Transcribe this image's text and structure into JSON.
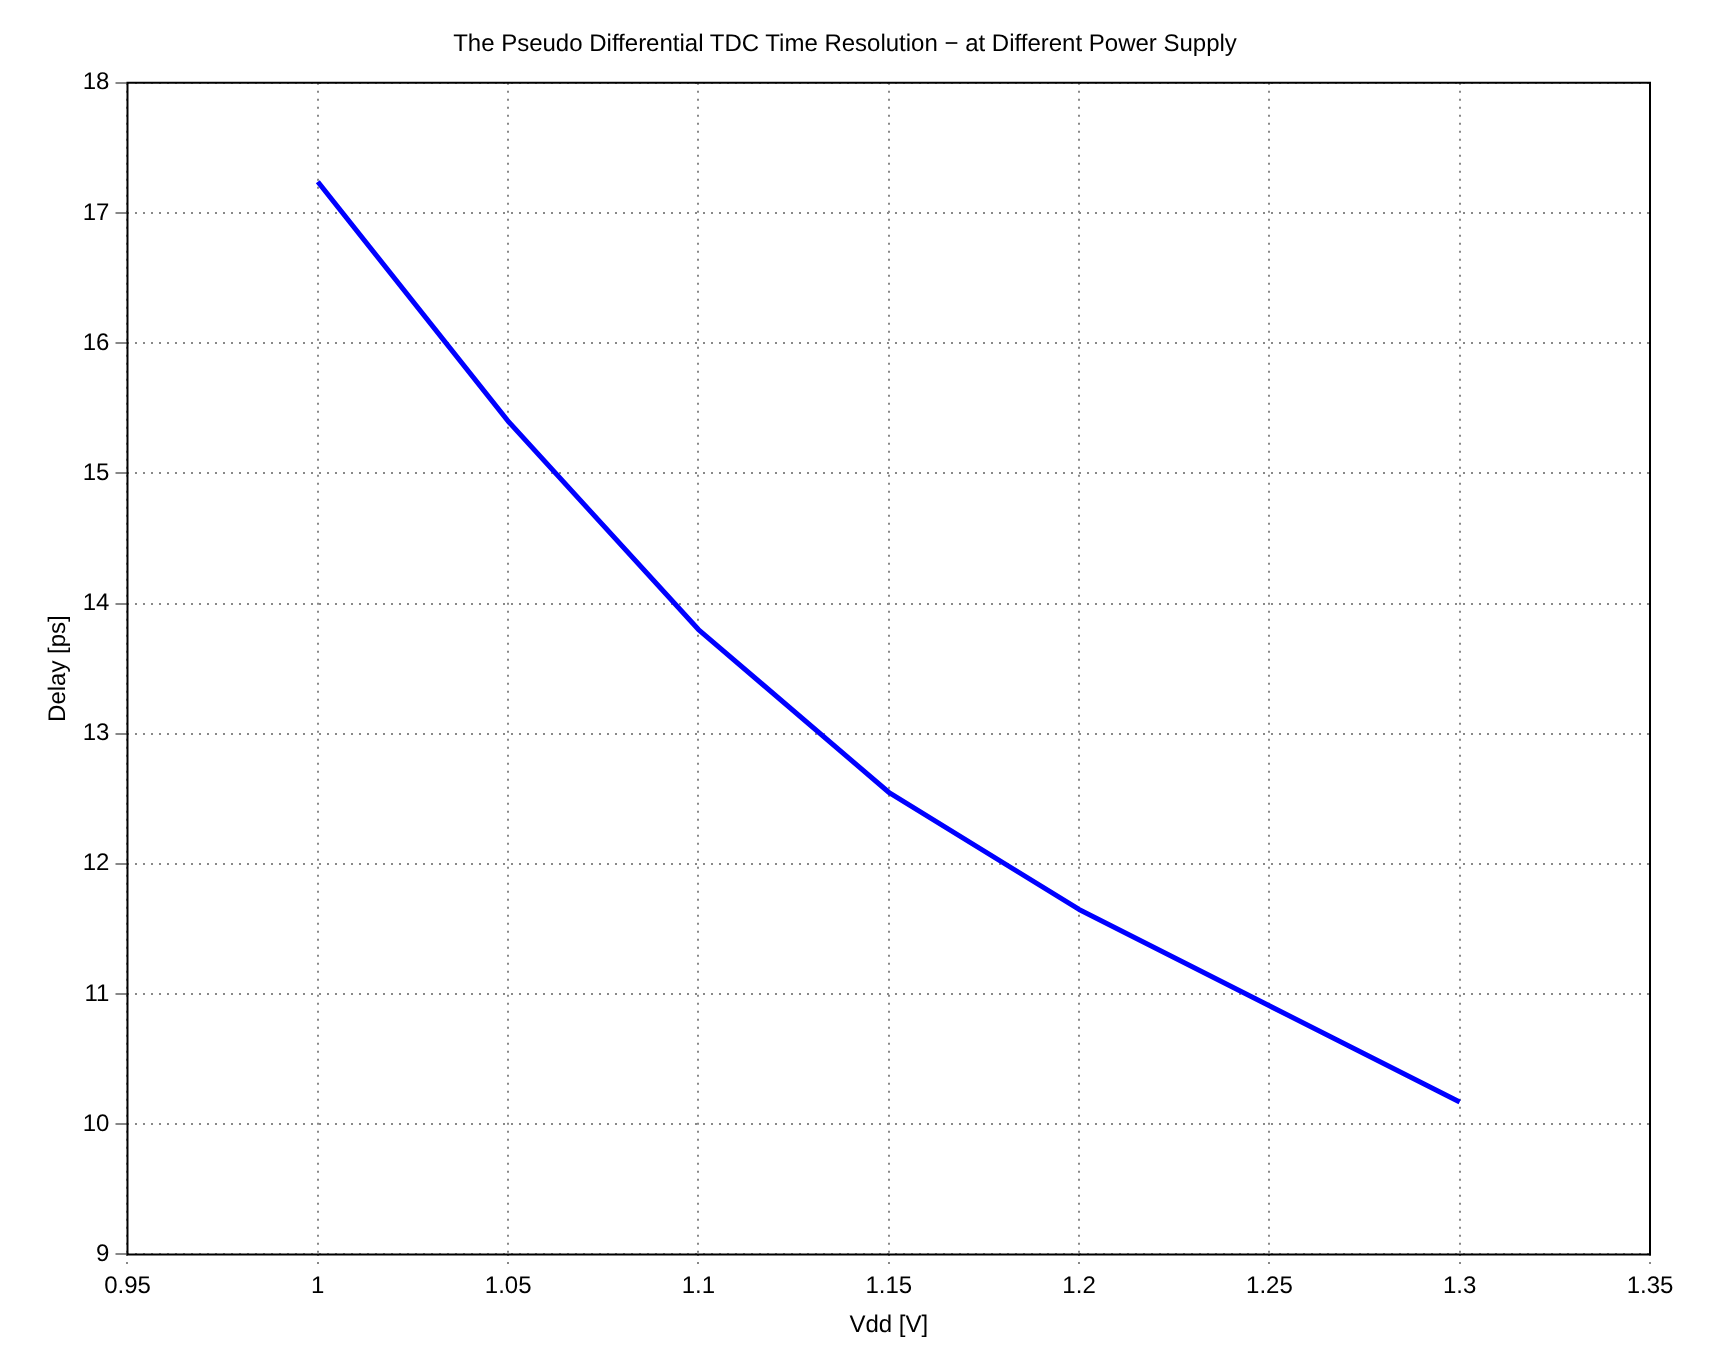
{
  "chart_data": {
    "type": "line",
    "title": "The Pseudo Differential TDC Time Resolution − at Different Power Supply",
    "xlabel": "Vdd [V]",
    "ylabel": "Delay [ps]",
    "x": [
      1,
      1.05,
      1.1,
      1.15,
      1.2,
      1.25,
      1.3
    ],
    "series": [
      {
        "color": "#0000ff",
        "values": [
          17.24,
          15.4,
          13.8,
          12.55,
          11.65,
          10.91,
          10.17
        ]
      }
    ],
    "xlim": [
      0.95,
      1.35
    ],
    "xticks": [
      0.95,
      1,
      1.05,
      1.1,
      1.15,
      1.2,
      1.25,
      1.3,
      1.35
    ],
    "ylim": [
      9,
      18
    ],
    "yticks": [
      9,
      10,
      11,
      12,
      13,
      14,
      15,
      16,
      17,
      18
    ],
    "grid": true,
    "legend": false,
    "marker": "none",
    "line_style": "solid"
  }
}
